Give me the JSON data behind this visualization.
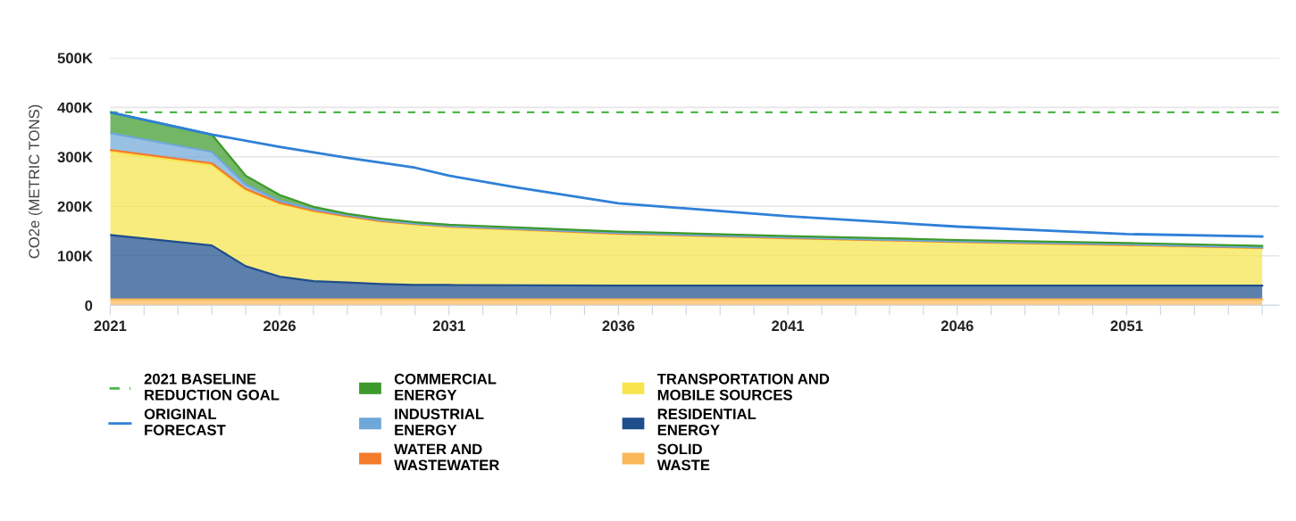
{
  "chart_data": {
    "type": "area",
    "stacked": true,
    "ylabel": "CO2e (METRIC TONS)",
    "x": [
      2021,
      2024,
      2025,
      2026,
      2027,
      2028,
      2029,
      2030,
      2031,
      2036,
      2041,
      2046,
      2051,
      2055
    ],
    "series": [
      {
        "name": "SOLID\nWASTE",
        "color": "#f9b857",
        "values": [
          12000,
          12000,
          12000,
          12000,
          12000,
          12000,
          12000,
          12000,
          12000,
          12000,
          12000,
          12000,
          12000,
          12000
        ]
      },
      {
        "name": "RESIDENTIAL\nENERGY",
        "color": "#1f4e8c",
        "values": [
          130000,
          109000,
          67000,
          46000,
          37000,
          34000,
          31000,
          29000,
          29000,
          28000,
          28000,
          28000,
          28000,
          28000
        ]
      },
      {
        "name": "TRANSPORTATION AND\nMOBILE SOURCES",
        "color": "#f7e44c",
        "values": [
          168000,
          162000,
          153000,
          147000,
          140000,
          133000,
          126000,
          122000,
          117000,
          104000,
          95000,
          87000,
          81000,
          75000
        ]
      },
      {
        "name": "WATER AND\nWASTEWATER",
        "color": "#f47a2c",
        "values": [
          4000,
          4000,
          3000,
          2000,
          2000,
          1000,
          1000,
          1000,
          1000,
          1000,
          1000,
          1000,
          1000,
          1000
        ]
      },
      {
        "name": "INDUSTRIAL\nENERGY",
        "color": "#6fa8d8",
        "values": [
          34000,
          23000,
          9000,
          4000,
          3000,
          2000,
          2000,
          1000,
          1000,
          1000,
          1000,
          1000,
          1000,
          1000
        ]
      },
      {
        "name": "COMMERCIAL\nENERGY",
        "color": "#3d9a2a",
        "values": [
          42000,
          35000,
          18000,
          12000,
          5000,
          3000,
          3000,
          3000,
          3000,
          3000,
          3000,
          3000,
          3000,
          3000
        ]
      },
      {
        "name": "ORIGINAL\nFORECAST",
        "type": "line",
        "color": "#2f80d8",
        "x": [
          2021,
          2024,
          2026,
          2028,
          2030,
          2031,
          2033,
          2036,
          2041,
          2046,
          2051,
          2055
        ],
        "values": [
          390000,
          345000,
          320000,
          298000,
          278000,
          262000,
          238000,
          206000,
          180000,
          159000,
          144000,
          139000
        ]
      }
    ],
    "ref_lines": [
      {
        "axis": "y",
        "value": 390000,
        "label": "2021 BASELINE\nREDUCTION GOAL",
        "color": "#4db848",
        "line_style": "dashed"
      }
    ],
    "xlim": [
      2021,
      2055.5
    ],
    "xticks": [
      {
        "value": 2021,
        "label": "2021"
      },
      {
        "value": 2022,
        "label": null
      },
      {
        "value": 2023,
        "label": null
      },
      {
        "value": 2024,
        "label": null
      },
      {
        "value": 2025,
        "label": null
      },
      {
        "value": 2026,
        "label": "2026"
      },
      {
        "value": 2027,
        "label": null
      },
      {
        "value": 2028,
        "label": null
      },
      {
        "value": 2029,
        "label": null
      },
      {
        "value": 2030,
        "label": null
      },
      {
        "value": 2031,
        "label": "2031"
      },
      {
        "value": 2032,
        "label": null
      },
      {
        "value": 2033,
        "label": null
      },
      {
        "value": 2034,
        "label": null
      },
      {
        "value": 2035,
        "label": null
      },
      {
        "value": 2036,
        "label": "2036"
      },
      {
        "value": 2037,
        "label": null
      },
      {
        "value": 2038,
        "label": null
      },
      {
        "value": 2039,
        "label": null
      },
      {
        "value": 2040,
        "label": null
      },
      {
        "value": 2041,
        "label": "2041"
      },
      {
        "value": 2042,
        "label": null
      },
      {
        "value": 2043,
        "label": null
      },
      {
        "value": 2044,
        "label": null
      },
      {
        "value": 2045,
        "label": null
      },
      {
        "value": 2046,
        "label": "2046"
      },
      {
        "value": 2047,
        "label": null
      },
      {
        "value": 2048,
        "label": null
      },
      {
        "value": 2049,
        "label": null
      },
      {
        "value": 2050,
        "label": null
      },
      {
        "value": 2051,
        "label": "2051"
      },
      {
        "value": 2052,
        "label": null
      },
      {
        "value": 2053,
        "label": null
      },
      {
        "value": 2054,
        "label": null
      },
      {
        "value": 2055,
        "label": null
      }
    ],
    "ylim": [
      0,
      500000
    ],
    "yticks": [
      0,
      {
        "value": 100000,
        "label": "100K"
      },
      {
        "value": 200000,
        "label": "200K"
      },
      {
        "value": 300000,
        "label": "300K"
      },
      {
        "value": 400000,
        "label": "400K"
      },
      {
        "value": 500000,
        "label": "500K"
      }
    ],
    "grid": "y",
    "legend": "bottom left"
  }
}
